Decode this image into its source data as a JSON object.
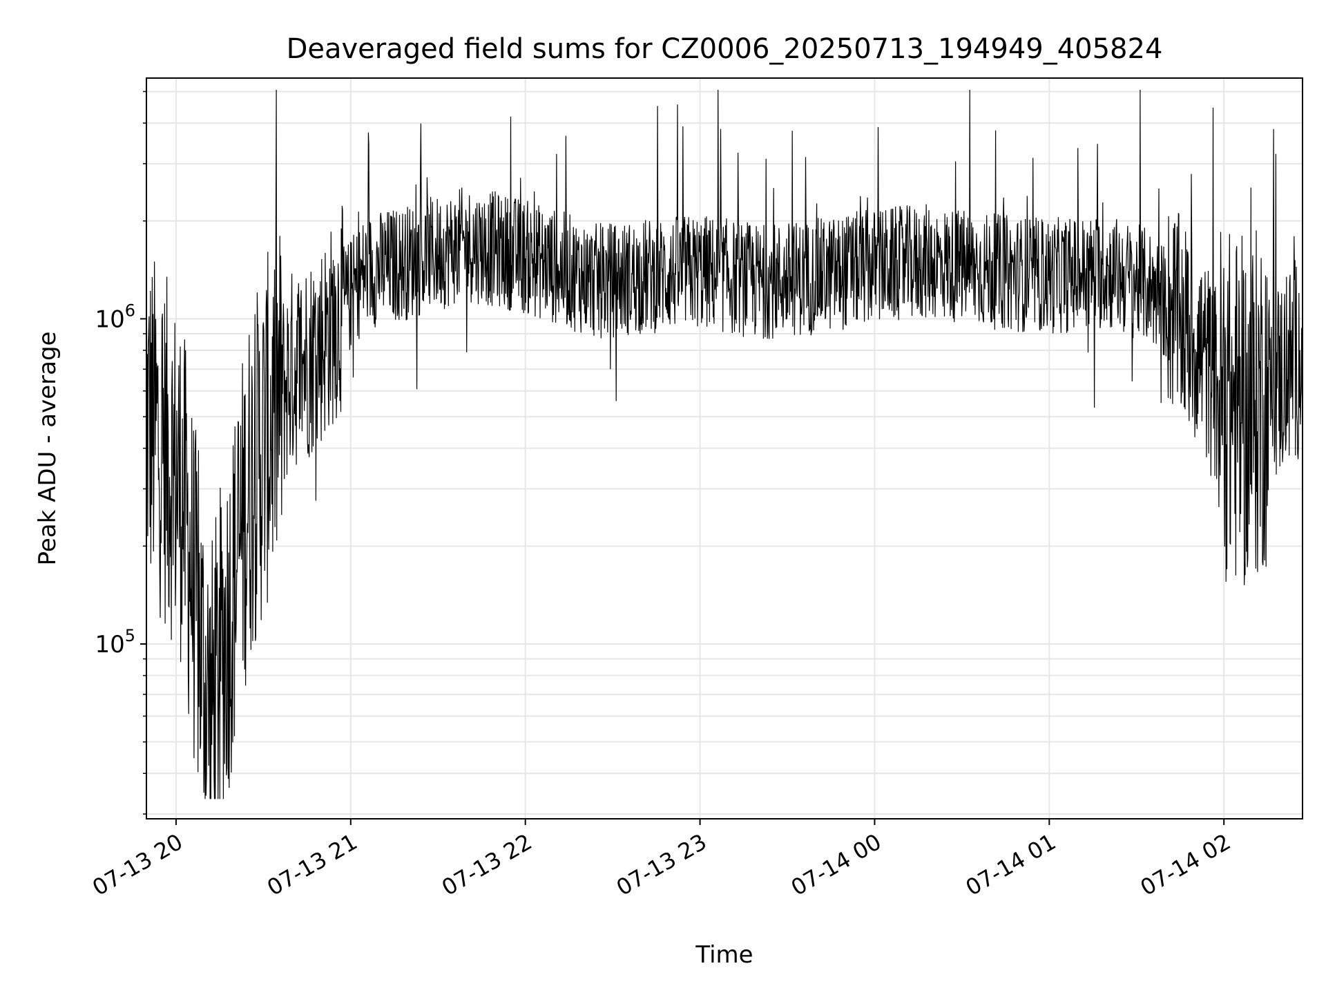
{
  "chart_data": {
    "type": "line",
    "title": "Deaveraged field sums for CZ0006_20250713_194949_405824",
    "xlabel": "Time",
    "ylabel": "Peak ADU - average",
    "y_scale": "log",
    "xlim": [
      "2025-07-13 19:49:49",
      "2025-07-14 02:27:00"
    ],
    "ylim": [
      29000,
      5500000
    ],
    "x_ticks": [
      {
        "value": "2025-07-13 20:00",
        "label": "07-13 20"
      },
      {
        "value": "2025-07-13 21:00",
        "label": "07-13 21"
      },
      {
        "value": "2025-07-13 22:00",
        "label": "07-13 22"
      },
      {
        "value": "2025-07-13 23:00",
        "label": "07-13 23"
      },
      {
        "value": "2025-07-14 00:00",
        "label": "07-14 00"
      },
      {
        "value": "2025-07-14 01:00",
        "label": "07-14 01"
      },
      {
        "value": "2025-07-14 02:00",
        "label": "07-14 02"
      }
    ],
    "y_ticks": [
      {
        "value": 100000,
        "base": "10",
        "exp": "5"
      },
      {
        "value": 1000000,
        "base": "10",
        "exp": "6"
      }
    ],
    "grid": true,
    "line_color": "#000000",
    "series": [
      {
        "x": [
          "2025-07-13 19:49:49",
          "2025-07-13 19:56",
          "2025-07-13 20:02",
          "2025-07-13 20:06",
          "2025-07-13 20:09",
          "2025-07-13 20:12",
          "2025-07-13 20:18",
          "2025-07-13 20:25",
          "2025-07-13 20:33",
          "2025-07-13 20:40",
          "2025-07-13 20:48",
          "2025-07-13 20:55",
          "2025-07-13 21:05",
          "2025-07-13 21:20",
          "2025-07-13 21:40",
          "2025-07-13 21:55",
          "2025-07-13 22:10",
          "2025-07-13 22:25",
          "2025-07-13 22:40",
          "2025-07-13 23:00",
          "2025-07-13 23:20",
          "2025-07-13 23:40",
          "2025-07-14 00:00",
          "2025-07-14 00:20",
          "2025-07-14 00:40",
          "2025-07-14 01:00",
          "2025-07-14 01:20",
          "2025-07-14 01:35",
          "2025-07-14 01:45",
          "2025-07-14 01:52",
          "2025-07-14 02:00",
          "2025-07-14 02:08",
          "2025-07-14 02:15",
          "2025-07-14 02:22",
          "2025-07-14 02:27"
        ],
        "y": [
          500000,
          400000,
          300000,
          150000,
          90000,
          60000,
          120000,
          300000,
          500000,
          700000,
          800000,
          1000000,
          1400000,
          1500000,
          1700000,
          1600000,
          1450000,
          1300000,
          1350000,
          1400000,
          1300000,
          1350000,
          1450000,
          1500000,
          1400000,
          1350000,
          1400000,
          1250000,
          1000000,
          800000,
          550000,
          500000,
          600000,
          700000,
          800000
        ]
      }
    ]
  }
}
